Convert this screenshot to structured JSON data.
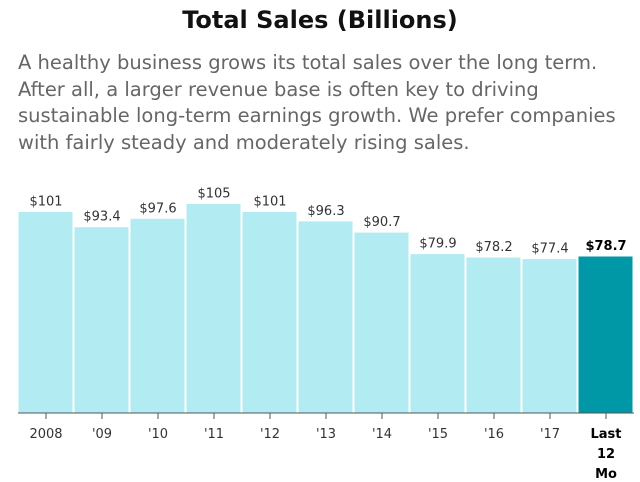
{
  "title": "Total Sales (Billions)",
  "subtitle": "A healthy business grows its total sales over the long term. After all, a larger revenue base is often key to driving sustainable long-term earnings growth. We prefer companies with fairly steady and moderately rising sales.",
  "colors": {
    "bar": "#b2ebf2",
    "highlight_bar": "#0097a7",
    "bar_edge": "#ffffff",
    "axis": "#555555"
  },
  "chart_data": {
    "type": "bar",
    "categories": [
      "2008",
      "'09",
      "'10",
      "'11",
      "'12",
      "'13",
      "'14",
      "'15",
      "'16",
      "'17",
      "Last\n12\nMo"
    ],
    "values": [
      101,
      93.4,
      97.6,
      105,
      101,
      96.3,
      90.7,
      79.9,
      78.2,
      77.4,
      78.7
    ],
    "value_labels": [
      "$101",
      "$93.4",
      "$97.6",
      "$105",
      "$101",
      "$96.3",
      "$90.7",
      "$79.9",
      "$78.2",
      "$77.4",
      "$78.7"
    ],
    "highlight_index": 10,
    "title": "Total Sales (Billions)",
    "xlabel": "",
    "ylabel": "",
    "ylim": [
      0,
      105
    ],
    "grid": false,
    "legend": "none"
  }
}
